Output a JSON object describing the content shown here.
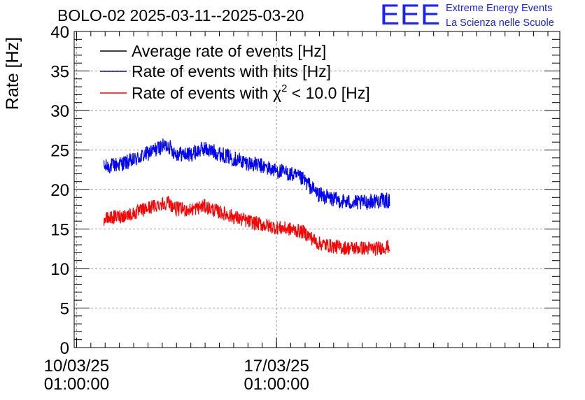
{
  "brand": {
    "mark": "EEE",
    "line1": "Extreme Energy Events",
    "line2": "La Scienza nelle Scuole",
    "color": "#1a22ff"
  },
  "chart_data": {
    "type": "line",
    "title": "BOLO-02 2025-03-11--2025-03-20",
    "xlabel": "",
    "ylabel": "Rate [Hz]",
    "ylim": [
      0,
      40
    ],
    "yticks": [
      0,
      5,
      10,
      15,
      20,
      25,
      30,
      35,
      40
    ],
    "xlim": [
      "2025-03-09T23:00",
      "2025-03-26T23:00"
    ],
    "xticks": [
      {
        "x": "2025-03-10T01:00",
        "label_date": "10/03/25",
        "label_time": "01:00:00"
      },
      {
        "x": "2025-03-17T01:00",
        "label_date": "17/03/25",
        "label_time": "01:00:00"
      }
    ],
    "grid": true,
    "legend_position": "top-left",
    "series": [
      {
        "name": "Average rate of events [Hz]",
        "color": "#000000",
        "x": [],
        "y": []
      },
      {
        "name": "Rate of events with hits [Hz]",
        "color": "#0000ff",
        "x": [
          "2025-03-11T00:00",
          "2025-03-11T12:00",
          "2025-03-12T00:00",
          "2025-03-12T12:00",
          "2025-03-13T00:00",
          "2025-03-13T06:00",
          "2025-03-13T12:00",
          "2025-03-14T00:00",
          "2025-03-14T12:00",
          "2025-03-15T00:00",
          "2025-03-15T12:00",
          "2025-03-16T00:00",
          "2025-03-16T12:00",
          "2025-03-17T00:00",
          "2025-03-17T12:00",
          "2025-03-18T00:00",
          "2025-03-18T12:00",
          "2025-03-19T00:00",
          "2025-03-19T12:00",
          "2025-03-20T00:00",
          "2025-03-20T12:00",
          "2025-03-21T00:00"
        ],
        "y": [
          22.8,
          23.2,
          23.6,
          24.5,
          25.4,
          25.6,
          24.6,
          24.4,
          25.2,
          24.6,
          24.0,
          23.4,
          23.0,
          22.4,
          22.0,
          21.2,
          19.4,
          18.8,
          18.4,
          18.3,
          18.6,
          18.6
        ],
        "noise": 1.0
      },
      {
        "name": "Rate of events with χ2 < 10.0 [Hz]",
        "name_display": {
          "pre": "Rate of events with ",
          "sym": "χ",
          "sup": "2",
          "post": " < 10.0 [Hz]"
        },
        "color": "#ff0000",
        "x": [
          "2025-03-11T00:00",
          "2025-03-11T12:00",
          "2025-03-12T00:00",
          "2025-03-12T12:00",
          "2025-03-13T00:00",
          "2025-03-13T06:00",
          "2025-03-13T12:00",
          "2025-03-14T00:00",
          "2025-03-14T12:00",
          "2025-03-15T00:00",
          "2025-03-15T12:00",
          "2025-03-16T00:00",
          "2025-03-16T12:00",
          "2025-03-17T00:00",
          "2025-03-17T12:00",
          "2025-03-18T00:00",
          "2025-03-18T12:00",
          "2025-03-19T00:00",
          "2025-03-19T12:00",
          "2025-03-20T00:00",
          "2025-03-20T12:00",
          "2025-03-21T00:00"
        ],
        "y": [
          16.2,
          16.6,
          16.9,
          17.6,
          18.2,
          18.4,
          17.6,
          17.4,
          17.9,
          17.2,
          16.6,
          16.0,
          15.6,
          15.2,
          15.0,
          14.6,
          13.2,
          12.8,
          12.6,
          12.6,
          12.5,
          12.8
        ],
        "noise": 0.9
      }
    ]
  }
}
